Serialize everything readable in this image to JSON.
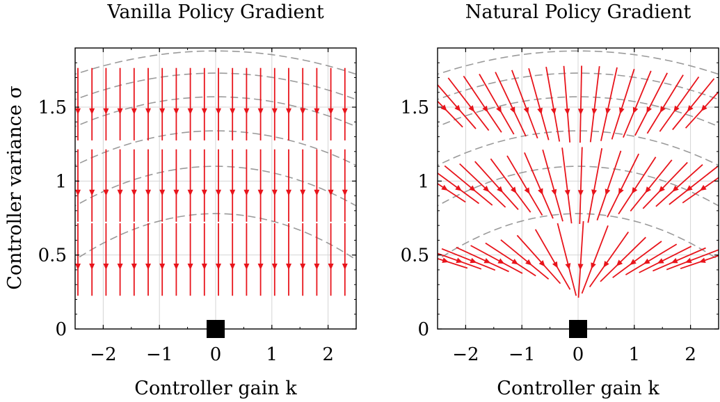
{
  "chart_data": [
    {
      "type": "quiver",
      "title": "Vanilla Policy Gradient",
      "xlabel": "Controller gain k",
      "ylabel": "Controller variance σ",
      "xlim": [
        -2.5,
        2.5
      ],
      "ylim": [
        0,
        1.9
      ],
      "xticks": [
        -2,
        -1,
        0,
        1,
        2
      ],
      "xtick_labels": [
        "−2",
        "−1",
        "0",
        "1",
        "2"
      ],
      "yticks": [
        0,
        0.5,
        1,
        1.5
      ],
      "ytick_labels": [
        "0",
        "0.5",
        "1",
        "1.5"
      ],
      "grid": true,
      "arrow_rows_sigma": [
        0.47,
        0.97,
        1.52
      ],
      "arrow_columns_k": [
        -2.45,
        -2.2,
        -1.95,
        -1.7,
        -1.45,
        -1.2,
        -0.95,
        -0.7,
        -0.45,
        -0.2,
        0.05,
        0.3,
        0.55,
        0.8,
        1.05,
        1.3,
        1.55,
        1.8,
        2.05,
        2.3
      ],
      "arrow_direction": "straight down (−σ), length ≈ 0.45 in σ units",
      "contour_levels_sigma_at_k0": [
        0.78,
        1.1,
        1.34,
        1.57,
        1.73,
        1.88
      ],
      "optimum": {
        "k": 0,
        "sigma": 0,
        "marker": "square"
      },
      "colors": {
        "arrows": "#e8141b",
        "contours": "#9a9a9a",
        "optimum": "#000000"
      }
    },
    {
      "type": "quiver",
      "title": "Natural Policy Gradient",
      "xlabel": "Controller gain k",
      "ylabel": "",
      "xlim": [
        -2.5,
        2.5
      ],
      "ylim": [
        0,
        1.9
      ],
      "xticks": [
        -2,
        -1,
        0,
        1,
        2
      ],
      "xtick_labels": [
        "−2",
        "−1",
        "0",
        "1",
        "2"
      ],
      "yticks": [
        0,
        0.5,
        1,
        1.5
      ],
      "ytick_labels": [
        "0",
        "0.5",
        "1",
        "1.5"
      ],
      "grid": true,
      "arrow_rows_sigma": [
        0.47,
        0.97,
        1.52
      ],
      "arrow_columns_k": [
        -2.45,
        -2.2,
        -1.95,
        -1.7,
        -1.45,
        -1.2,
        -0.95,
        -0.7,
        -0.45,
        -0.2,
        0.05,
        0.3,
        0.55,
        0.8,
        1.05,
        1.3,
        1.55,
        1.8,
        2.05,
        2.3
      ],
      "arrow_direction": "pointing toward the optimum (k=0, σ=0), length ≈ 0.5 in σ units",
      "contour_levels_sigma_at_k0": [
        0.78,
        1.1,
        1.34,
        1.57,
        1.73,
        1.88
      ],
      "optimum": {
        "k": 0,
        "sigma": 0,
        "marker": "square"
      },
      "colors": {
        "arrows": "#e8141b",
        "contours": "#9a9a9a",
        "optimum": "#000000"
      }
    }
  ]
}
